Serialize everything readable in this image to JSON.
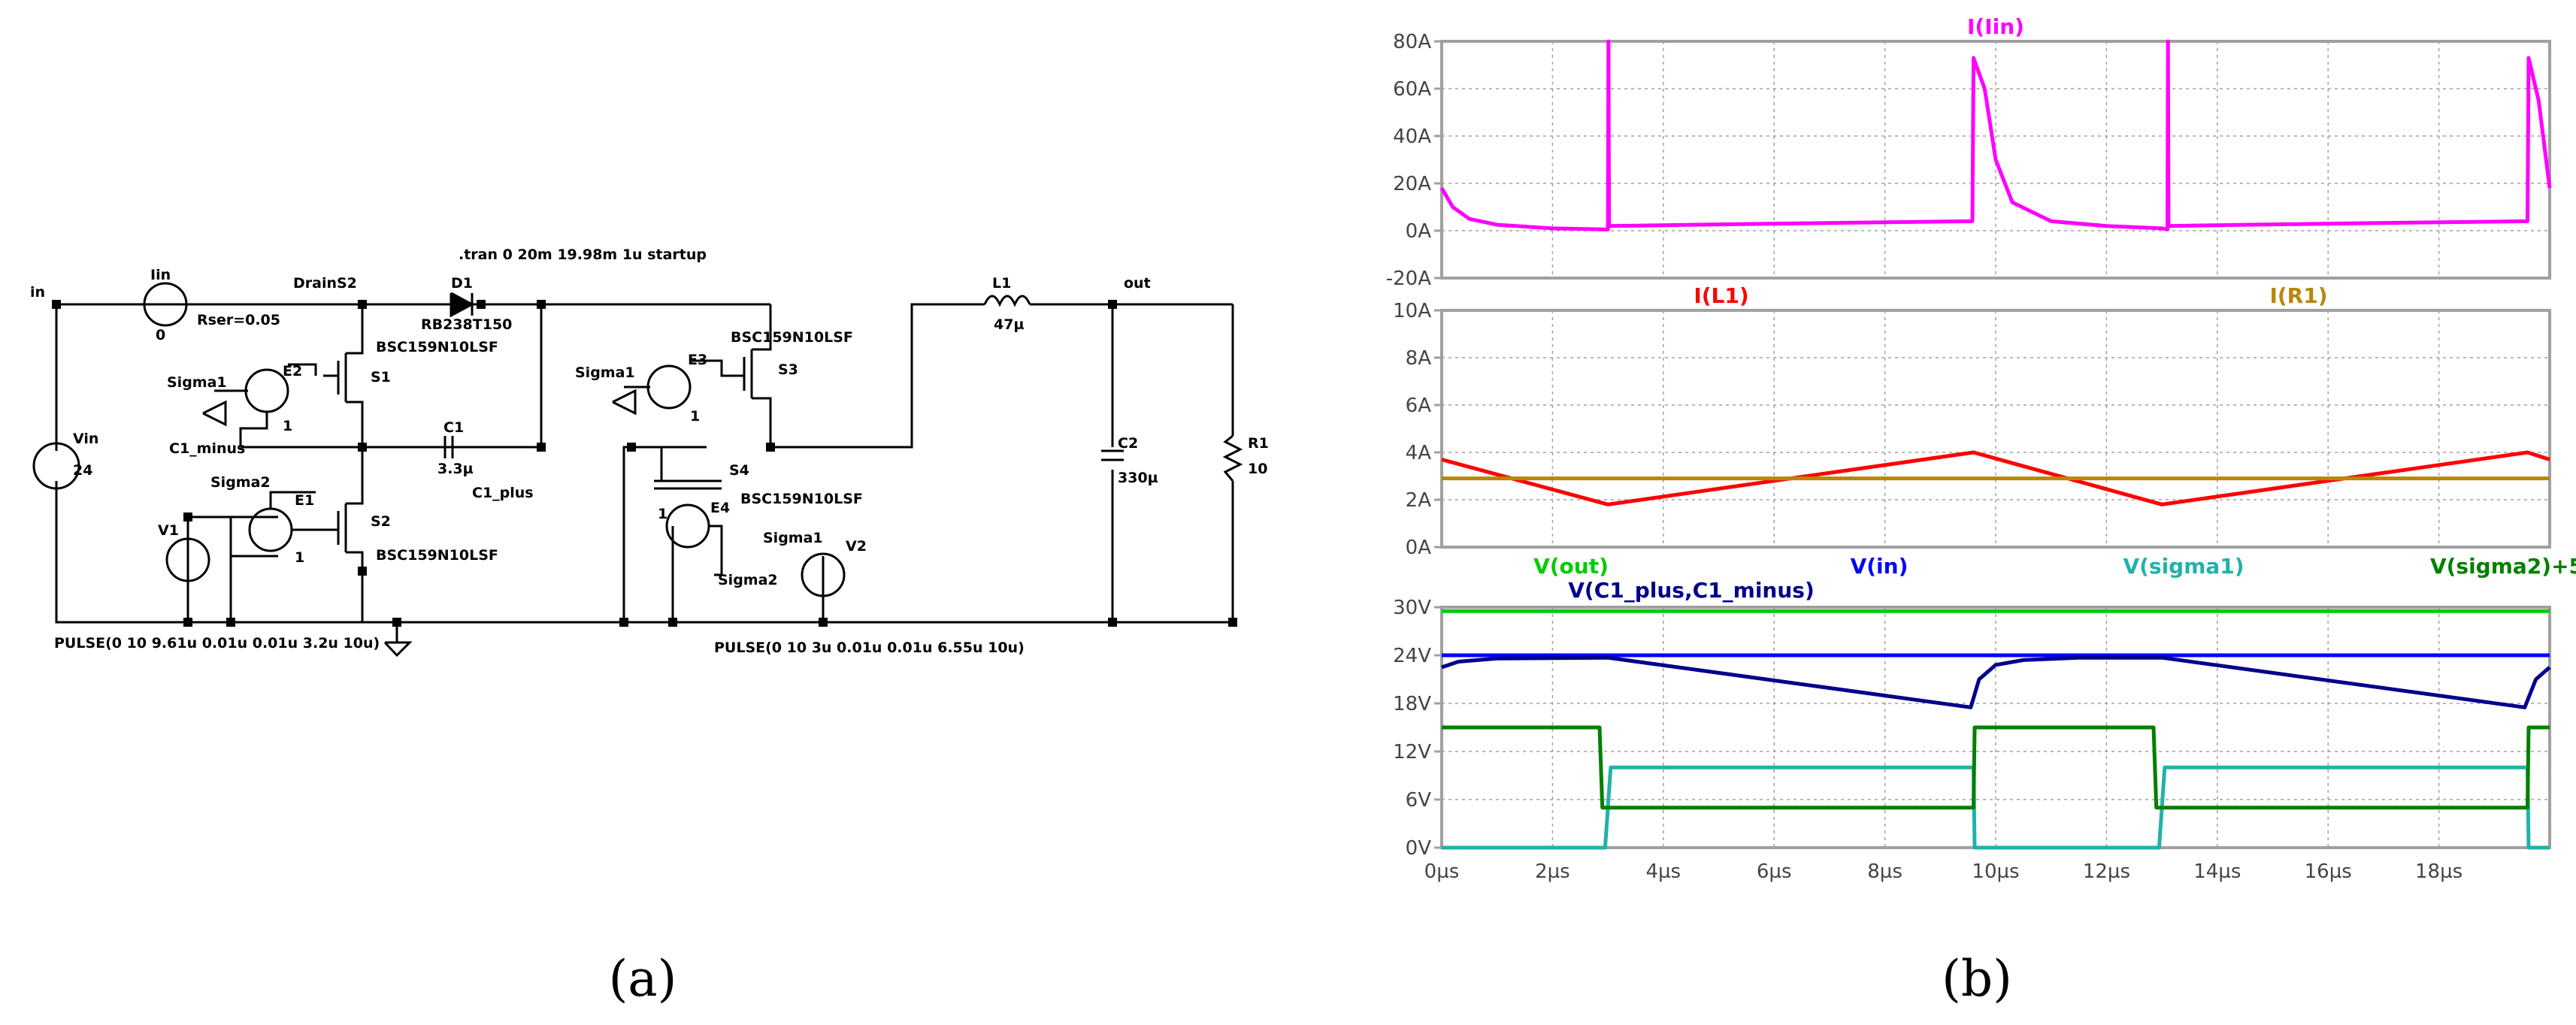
{
  "schematic": {
    "directive": ".tran 0 20m 19.98m 1u startup",
    "nodes": {
      "in": "in",
      "drain_s2": "DrainS2",
      "out": "out",
      "c1_minus": "C1_minus",
      "c1_plus": "C1_plus",
      "sigma1": "Sigma1",
      "sigma2": "Sigma2"
    },
    "components": {
      "iin": {
        "name": "Iin",
        "value": "0"
      },
      "rser": "Rser=0.05",
      "vin": {
        "name": "Vin",
        "value": "24"
      },
      "d1": {
        "name": "D1",
        "value": "RB238T150"
      },
      "c1": {
        "name": "C1",
        "value": "3.3µ"
      },
      "s1": {
        "name": "S1",
        "model": "BSC159N10LSF"
      },
      "s2": {
        "name": "S2",
        "model": "BSC159N10LSF"
      },
      "s3": {
        "name": "S3",
        "model": "BSC159N10LSF"
      },
      "s4": {
        "name": "S4",
        "model": "BSC159N10LSF"
      },
      "e1": {
        "name": "E1",
        "gain": "1"
      },
      "e2": {
        "name": "E2",
        "gain": "1"
      },
      "e3": {
        "name": "E3",
        "gain": "1"
      },
      "e4": {
        "name": "E4",
        "gain": "1"
      },
      "v1": {
        "name": "V1",
        "pulse": "PULSE(0 10 9.61u 0.01u 0.01u 3.2u 10u)"
      },
      "v2": {
        "name": "V2",
        "pulse": "PULSE(0 10 3u 0.01u 0.01u 6.55u 10u)"
      },
      "l1": {
        "name": "L1",
        "value": "47µ"
      },
      "c2": {
        "name": "C2",
        "value": "330µ"
      },
      "r1": {
        "name": "R1",
        "value": "10"
      }
    }
  },
  "captions": {
    "a": "(a)",
    "b": "(b)"
  },
  "colors": {
    "magenta": "#ff00ff",
    "red": "#ff0000",
    "gold": "#b8860b",
    "green": "#00cc00",
    "blue": "#0000ff",
    "cyan": "#20b2aa",
    "dkgreen": "#008000",
    "navy": "#00008b",
    "grid": "#a0a0a0"
  },
  "chart_data": [
    {
      "type": "line",
      "title": "I(Iin)",
      "x_ticks": [],
      "y_ticks": [
        "80A",
        "60A",
        "40A",
        "20A",
        "0A",
        "-20A"
      ],
      "ylim": [
        -20,
        80
      ],
      "xlim": [
        0,
        20
      ],
      "series": [
        {
          "name": "I(Iin)",
          "color": "#ff00ff",
          "points": [
            [
              0,
              18
            ],
            [
              0.2,
              10
            ],
            [
              0.5,
              5
            ],
            [
              1,
              2.5
            ],
            [
              2,
              1
            ],
            [
              3,
              0.5
            ],
            [
              3.01,
              80
            ],
            [
              3.02,
              2
            ],
            [
              6,
              3
            ],
            [
              9.58,
              4
            ],
            [
              9.6,
              73
            ],
            [
              9.8,
              60
            ],
            [
              10,
              30
            ],
            [
              10.3,
              12
            ],
            [
              11,
              4
            ],
            [
              12,
              2
            ],
            [
              13,
              1
            ],
            [
              13.1,
              0.5
            ],
            [
              13.11,
              80
            ],
            [
              13.12,
              2
            ],
            [
              16,
              3
            ],
            [
              19.6,
              4
            ],
            [
              19.62,
              73
            ],
            [
              19.8,
              55
            ],
            [
              20,
              18
            ]
          ]
        }
      ]
    },
    {
      "type": "line",
      "titles": [
        "I(L1)",
        "I(R1)"
      ],
      "x_ticks": [],
      "y_ticks": [
        "10A",
        "8A",
        "6A",
        "4A",
        "2A",
        "0A"
      ],
      "ylim": [
        0,
        10
      ],
      "xlim": [
        0,
        20
      ],
      "series": [
        {
          "name": "I(L1)",
          "color": "#ff0000",
          "points": [
            [
              0,
              3.7
            ],
            [
              3,
              1.8
            ],
            [
              9.6,
              4
            ],
            [
              13,
              1.8
            ],
            [
              19.6,
              4
            ],
            [
              20,
              3.7
            ]
          ]
        },
        {
          "name": "I(R1)",
          "color": "#b8860b",
          "points": [
            [
              0,
              2.9
            ],
            [
              20,
              2.9
            ]
          ]
        }
      ]
    },
    {
      "type": "line",
      "titles": [
        "V(out)",
        "V(in)",
        "V(sigma1)",
        "V(sigma2)+5",
        "V(C1_plus,C1_minus)"
      ],
      "x_ticks": [
        "0µs",
        "2µs",
        "4µs",
        "6µs",
        "8µs",
        "10µs",
        "12µs",
        "14µs",
        "16µs",
        "18µs"
      ],
      "x_tick_values": [
        0,
        2,
        4,
        6,
        8,
        10,
        12,
        14,
        16,
        18
      ],
      "y_ticks": [
        "30V",
        "24V",
        "18V",
        "12V",
        "6V",
        "0V"
      ],
      "ylim": [
        0,
        30
      ],
      "xlim": [
        0,
        20
      ],
      "series": [
        {
          "name": "V(out)",
          "color": "#00cc00",
          "points": [
            [
              0,
              29.5
            ],
            [
              20,
              29.5
            ]
          ]
        },
        {
          "name": "V(in)",
          "color": "#0000ff",
          "points": [
            [
              0,
              24
            ],
            [
              20,
              24
            ]
          ]
        },
        {
          "name": "V(sigma1)",
          "color": "#20b2aa",
          "points": [
            [
              0,
              0
            ],
            [
              2.95,
              0
            ],
            [
              3.05,
              10
            ],
            [
              9.6,
              10
            ],
            [
              9.62,
              0
            ],
            [
              12.95,
              0
            ],
            [
              13.05,
              10
            ],
            [
              19.6,
              10
            ],
            [
              19.62,
              0
            ],
            [
              20,
              0
            ]
          ]
        },
        {
          "name": "V(sigma2)+5",
          "color": "#008000",
          "points": [
            [
              0,
              15
            ],
            [
              2.85,
              15
            ],
            [
              2.9,
              5
            ],
            [
              9.6,
              5
            ],
            [
              9.62,
              15
            ],
            [
              12.85,
              15
            ],
            [
              12.9,
              5
            ],
            [
              19.6,
              5
            ],
            [
              19.62,
              15
            ],
            [
              20,
              15
            ]
          ]
        },
        {
          "name": "V(C1_plus,C1_minus)",
          "color": "#00008b",
          "points": [
            [
              0,
              22.5
            ],
            [
              0.3,
              23.2
            ],
            [
              1,
              23.6
            ],
            [
              3,
              23.7
            ],
            [
              9.55,
              17.5
            ],
            [
              9.7,
              21
            ],
            [
              10,
              22.8
            ],
            [
              10.5,
              23.4
            ],
            [
              11.5,
              23.7
            ],
            [
              13,
              23.7
            ],
            [
              19.55,
              17.5
            ],
            [
              19.75,
              21
            ],
            [
              20,
              22.5
            ]
          ]
        }
      ]
    }
  ]
}
